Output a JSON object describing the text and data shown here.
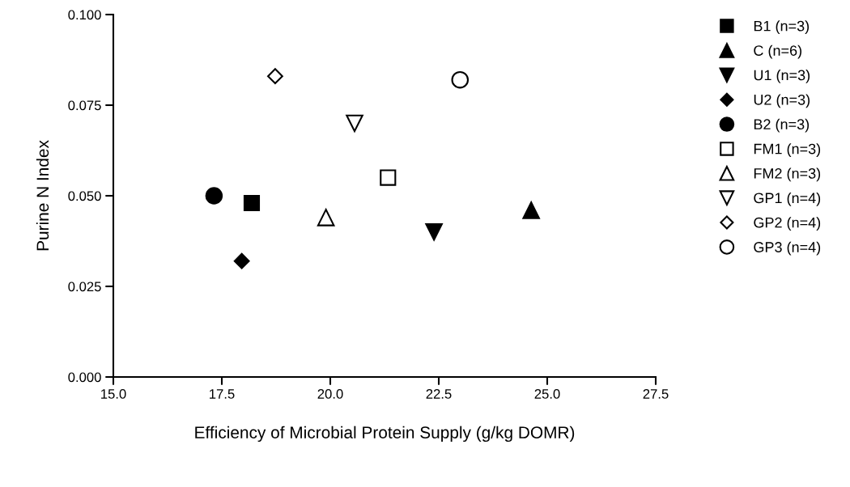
{
  "chart_data": {
    "type": "scatter",
    "xlabel": "Efficiency of Microbial Protein Supply (g/kg DOMR)",
    "ylabel": "Purine N Index",
    "xlim": [
      15.0,
      27.5
    ],
    "xticks": [
      {
        "value": 15,
        "label": "15.0"
      },
      {
        "value": 17.5,
        "label": "17.5"
      },
      {
        "value": 20,
        "label": "20.0"
      },
      {
        "value": 22.5,
        "label": "22.5"
      },
      {
        "value": 25,
        "label": "25.0"
      },
      {
        "value": 27.5,
        "label": "27.5"
      }
    ],
    "ylim": [
      0,
      0.1
    ],
    "yticks": [
      {
        "value": 0,
        "label": "0.000"
      },
      {
        "value": 0.025,
        "label": "0.025"
      },
      {
        "value": 0.05,
        "label": "0.050"
      },
      {
        "value": 0.075,
        "label": "0.075"
      },
      {
        "value": 0.1,
        "label": "0.100"
      }
    ],
    "grid": false,
    "legend": "right",
    "series": [
      {
        "name": "B1 (n=3)",
        "color": "#000000",
        "marker": "square",
        "x": [
          18.19
        ],
        "values": [
          0.048
        ]
      },
      {
        "name": "C (n=6)",
        "color": "#000000",
        "marker": "triangle",
        "x": [
          24.63
        ],
        "values": [
          0.046
        ]
      },
      {
        "name": "U1 (n=3)",
        "color": "#000000",
        "marker": "triangle-down",
        "x": [
          22.39
        ],
        "values": [
          0.04
        ]
      },
      {
        "name": "U2 (n=3)",
        "color": "#000000",
        "marker": "diamond",
        "x": [
          17.96
        ],
        "values": [
          0.032
        ]
      },
      {
        "name": "B2 (n=3)",
        "color": "#000000",
        "marker": "circle",
        "x": [
          17.32
        ],
        "values": [
          0.05
        ]
      },
      {
        "name": "FM1 (n=3)",
        "color": "#000000",
        "marker": "square-open",
        "x": [
          21.33
        ],
        "values": [
          0.055
        ]
      },
      {
        "name": "FM2 (n=3)",
        "color": "#000000",
        "marker": "triangle-open",
        "x": [
          19.9
        ],
        "values": [
          0.044
        ]
      },
      {
        "name": "GP1 (n=4)",
        "color": "#000000",
        "marker": "triangle-down-open",
        "x": [
          20.56
        ],
        "values": [
          0.07
        ]
      },
      {
        "name": "GP2 (n=4)",
        "color": "#000000",
        "marker": "diamond-open",
        "x": [
          18.73
        ],
        "values": [
          0.083
        ]
      },
      {
        "name": "GP3 (n=4)",
        "color": "#000000",
        "marker": "circle-open",
        "x": [
          22.99
        ],
        "values": [
          0.082
        ]
      }
    ]
  }
}
